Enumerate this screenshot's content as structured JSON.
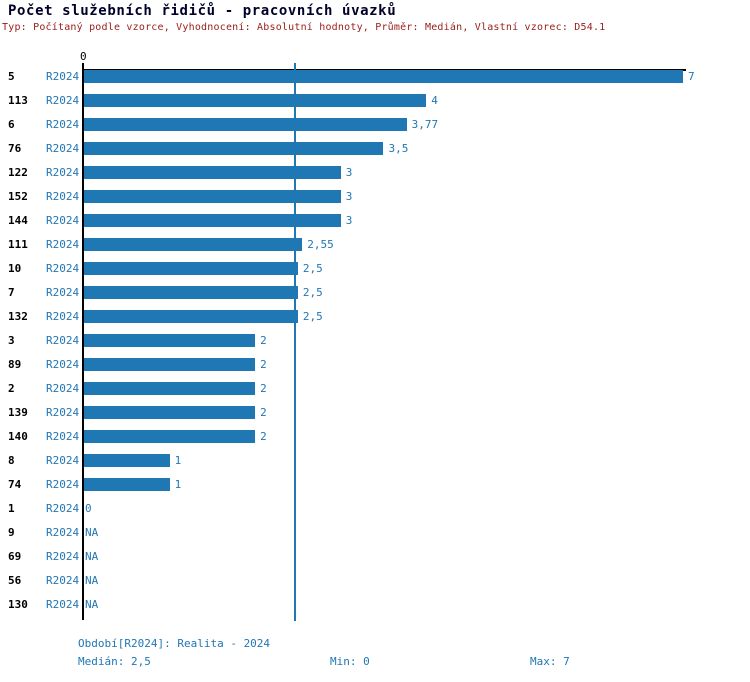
{
  "title": "Počet služebních řidičů - pracovních úvazků",
  "subtitle": "Typ: Počítaný podle vzorce, Vyhodnocení: Absolutní hodnoty, Průměr: Medián, Vlastní vzorec: D54.1",
  "colors": {
    "bar": "#1f77b4",
    "blue_text": "#2077b4",
    "title_text": "#000028",
    "subtitle_text": "#9b1b1b",
    "axis": "#000000",
    "median_line": "#2077b4"
  },
  "axis": {
    "zero_tick_label": "0"
  },
  "chart_data": {
    "type": "bar",
    "orientation": "horizontal",
    "title": "Počet služebních řidičů - pracovních úvazků",
    "subtitle": "Typ: Počítaný podle vzorce, Vyhodnocení: Absolutní hodnoty, Průměr: Medián, Vlastní vzorec: D54.1",
    "xlim": [
      0,
      7
    ],
    "x_ticks": [
      "0"
    ],
    "grid": false,
    "median_reference_line": 2.5,
    "series_period": "R2024",
    "categories": [
      "5",
      "113",
      "6",
      "76",
      "122",
      "152",
      "144",
      "111",
      "10",
      "7",
      "132",
      "3",
      "89",
      "2",
      "139",
      "140",
      "8",
      "74",
      "1",
      "9",
      "69",
      "56",
      "130"
    ],
    "values": [
      7,
      4,
      3.77,
      3.5,
      3,
      3,
      3,
      2.55,
      2.5,
      2.5,
      2.5,
      2,
      2,
      2,
      2,
      2,
      1,
      1,
      0,
      null,
      null,
      null,
      null
    ],
    "value_labels": [
      "7",
      "4",
      "3,77",
      "3,5",
      "3",
      "3",
      "3",
      "2,55",
      "2,5",
      "2,5",
      "2,5",
      "2",
      "2",
      "2",
      "2",
      "2",
      "1",
      "1",
      "0",
      "NA",
      "NA",
      "NA",
      "NA"
    ]
  },
  "footer": {
    "period": "Období[R2024]: Realita - 2024",
    "median": "Medián: 2,5",
    "min": "Min: 0",
    "max": "Max: 7"
  }
}
